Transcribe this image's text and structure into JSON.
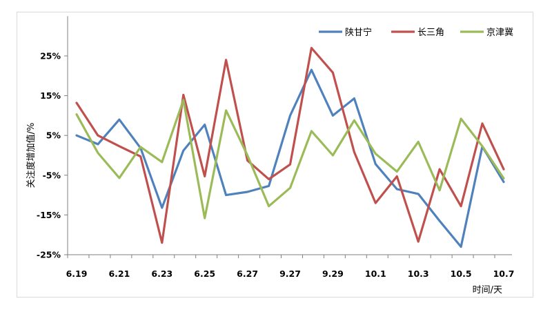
{
  "chart_data": {
    "type": "line",
    "xlabel": "时间/天",
    "ylabel": "关注度增加值/%",
    "ylim": [
      -25,
      35
    ],
    "y_ticks": [
      25,
      15,
      5,
      -5,
      -15,
      -25
    ],
    "y_tick_labels": [
      "25%",
      "15%",
      "5%",
      "-5%",
      "-15%",
      "-25%"
    ],
    "x_tick_labels": [
      {
        "index": 0,
        "label": "6.19"
      },
      {
        "index": 2,
        "label": "6.21"
      },
      {
        "index": 4,
        "label": "6.23"
      },
      {
        "index": 6,
        "label": "6.25"
      },
      {
        "index": 8,
        "label": "6.27"
      },
      {
        "index": 10,
        "label": "9.27"
      },
      {
        "index": 12,
        "label": "9.29"
      },
      {
        "index": 14,
        "label": "10.1"
      },
      {
        "index": 16,
        "label": "10.3"
      },
      {
        "index": 18,
        "label": "10.5"
      },
      {
        "index": 20,
        "label": "10.7"
      }
    ],
    "point_count": 21,
    "grid": false,
    "legend_position": "top-right",
    "series": [
      {
        "name": "陕甘宁",
        "color": "#4f81bd",
        "values": [
          5,
          2.8,
          9,
          1.8,
          -13.2,
          1.2,
          7.7,
          -10,
          -9.2,
          -7.7,
          10,
          21.5,
          10,
          14.3,
          -2.2,
          -8.5,
          -9.7,
          -16.5,
          -23,
          2.2,
          -6.7
        ]
      },
      {
        "name": "长三角",
        "color": "#c0504d",
        "values": [
          13.2,
          5,
          2.3,
          -0.3,
          -22,
          15.2,
          -5.3,
          24,
          -1.3,
          -6,
          -2.3,
          27,
          20.8,
          0.8,
          -12,
          -5.3,
          -21.7,
          -3.5,
          -12.8,
          8,
          -3.5
        ]
      },
      {
        "name": "京津冀",
        "color": "#9bbb59",
        "values": [
          10.3,
          0.6,
          -5.7,
          2.1,
          -1.7,
          13.9,
          -15.8,
          11.3,
          0,
          -12.8,
          -8.2,
          6.1,
          0,
          8.8,
          0.4,
          -4.1,
          3.4,
          -8.8,
          9.2,
          2.3,
          -5.8
        ]
      }
    ]
  }
}
